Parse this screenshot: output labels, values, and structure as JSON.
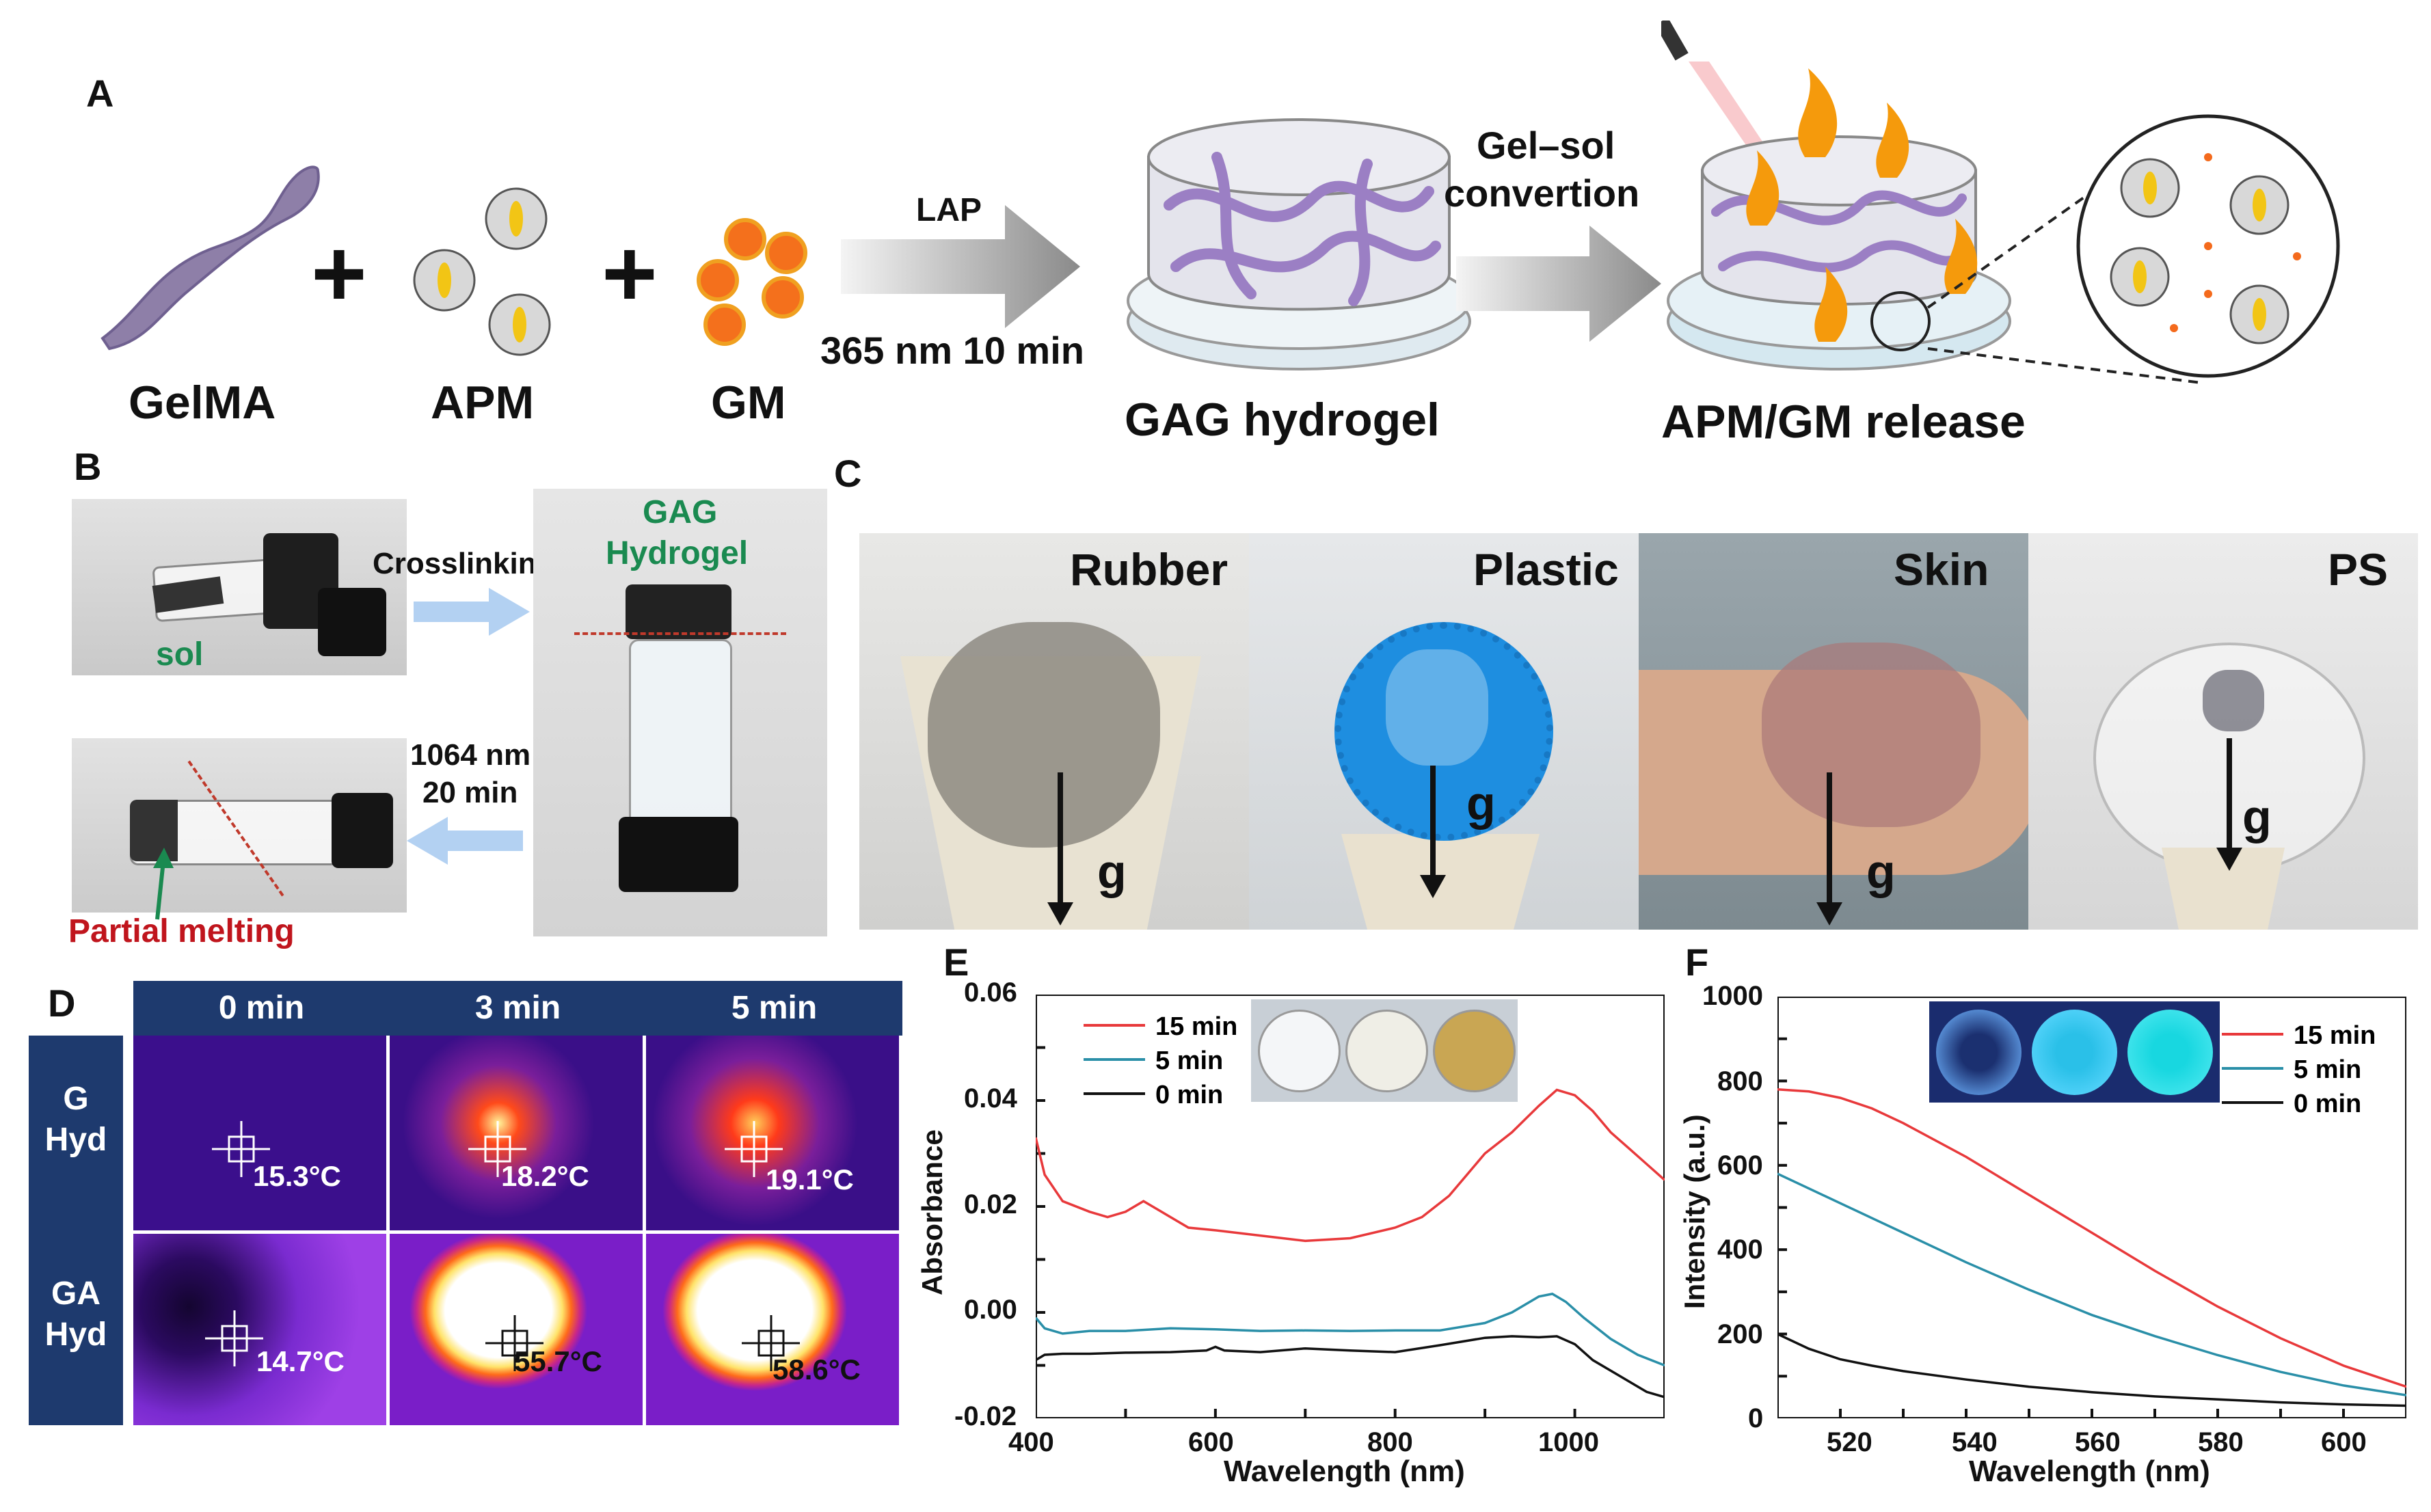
{
  "panels": {
    "a": "A",
    "b": "B",
    "c": "C",
    "d": "D",
    "e": "E",
    "f": "F"
  },
  "panel_a": {
    "gelma": "GelMA",
    "apm": "APM",
    "gm": "GM",
    "arrow1_top": "LAP",
    "arrow1_bottom": "365 nm 10 min",
    "gag_hydrogel": "GAG hydrogel",
    "arrow2_line1": "Gel–sol",
    "arrow2_line2": "convertion",
    "release": "APM/GM release"
  },
  "panel_b": {
    "sol": "sol",
    "crosslinking": "Crosslinking",
    "gag_line1": "GAG",
    "gag_line2": "Hydrogel",
    "laser_line1": "1064 nm",
    "laser_line2": "20 min",
    "partial_melting": "Partial melting"
  },
  "panel_c": {
    "rubber": "Rubber",
    "plastic": "Plastic",
    "skin": "Skin",
    "ps": "PS",
    "g": "g"
  },
  "panel_d": {
    "headers": [
      "0 min",
      "3 min",
      "5 min"
    ],
    "rows": [
      {
        "line1": "G",
        "line2": "Hyd",
        "temps": [
          "15.3°C",
          "18.2°C",
          "19.1°C"
        ]
      },
      {
        "line1": "GA",
        "line2": "Hyd",
        "temps": [
          "14.7°C",
          "55.7°C",
          "58.6°C"
        ]
      }
    ]
  },
  "chart_data": [
    {
      "type": "line",
      "panel": "E",
      "xlabel": "Wavelength (nm)",
      "ylabel": "Absorbance",
      "xlim": [
        400,
        1100
      ],
      "ylim": [
        -0.02,
        0.06
      ],
      "xticks": [
        400,
        600,
        800,
        1000
      ],
      "yticks": [
        "-0.02",
        "0.00",
        "0.02",
        "0.04",
        "0.06"
      ],
      "legend": "top-left",
      "series": [
        {
          "name": "15 min",
          "color": "#e8393b",
          "x": [
            400,
            410,
            430,
            460,
            480,
            500,
            520,
            540,
            570,
            600,
            650,
            700,
            750,
            800,
            830,
            860,
            880,
            900,
            930,
            960,
            980,
            1000,
            1020,
            1040,
            1060,
            1080,
            1100
          ],
          "y": [
            0.033,
            0.026,
            0.021,
            0.019,
            0.018,
            0.019,
            0.021,
            0.019,
            0.016,
            0.0155,
            0.0145,
            0.0135,
            0.014,
            0.016,
            0.018,
            0.022,
            0.026,
            0.03,
            0.034,
            0.039,
            0.042,
            0.041,
            0.038,
            0.034,
            0.031,
            0.028,
            0.025
          ]
        },
        {
          "name": "5 min",
          "color": "#2a8fa8",
          "x": [
            400,
            410,
            430,
            460,
            500,
            550,
            600,
            650,
            700,
            750,
            800,
            850,
            900,
            930,
            960,
            975,
            990,
            1010,
            1040,
            1070,
            1100
          ],
          "y": [
            -0.001,
            -0.003,
            -0.004,
            -0.0035,
            -0.0035,
            -0.003,
            -0.0032,
            -0.0035,
            -0.0034,
            -0.0035,
            -0.0034,
            -0.0034,
            -0.002,
            0.0,
            0.003,
            0.0035,
            0.002,
            -0.001,
            -0.005,
            -0.008,
            -0.01
          ]
        },
        {
          "name": "0 min",
          "color": "#111111",
          "x": [
            400,
            410,
            430,
            460,
            500,
            550,
            590,
            600,
            610,
            650,
            700,
            750,
            800,
            850,
            900,
            930,
            960,
            980,
            1000,
            1020,
            1050,
            1080,
            1100
          ],
          "y": [
            -0.009,
            -0.008,
            -0.0078,
            -0.0078,
            -0.0076,
            -0.0075,
            -0.0072,
            -0.0065,
            -0.0072,
            -0.0075,
            -0.0068,
            -0.0072,
            -0.0075,
            -0.0062,
            -0.0048,
            -0.0045,
            -0.0047,
            -0.0045,
            -0.006,
            -0.009,
            -0.012,
            -0.015,
            -0.016
          ]
        }
      ]
    },
    {
      "type": "line",
      "panel": "F",
      "xlabel": "Wavelength (nm)",
      "ylabel": "Intensity (a.u.)",
      "xlim": [
        510,
        610
      ],
      "ylim": [
        0,
        1000
      ],
      "xticks": [
        520,
        540,
        560,
        580,
        600
      ],
      "yticks": [
        0,
        200,
        400,
        600,
        800,
        1000
      ],
      "legend": "top-right",
      "series": [
        {
          "name": "15 min",
          "color": "#e8393b",
          "x": [
            510,
            515,
            520,
            525,
            530,
            540,
            550,
            560,
            570,
            580,
            590,
            600,
            610
          ],
          "y": [
            780,
            775,
            760,
            735,
            700,
            620,
            530,
            440,
            350,
            265,
            190,
            125,
            75
          ]
        },
        {
          "name": "5 min",
          "color": "#2a8fa8",
          "x": [
            510,
            515,
            520,
            525,
            530,
            540,
            550,
            560,
            570,
            580,
            590,
            600,
            610
          ],
          "y": [
            580,
            545,
            510,
            475,
            440,
            370,
            305,
            245,
            195,
            150,
            110,
            78,
            55
          ]
        },
        {
          "name": "0 min",
          "color": "#111111",
          "x": [
            510,
            515,
            520,
            525,
            530,
            540,
            550,
            560,
            570,
            580,
            590,
            600,
            610
          ],
          "y": [
            200,
            165,
            140,
            125,
            112,
            92,
            75,
            62,
            52,
            45,
            38,
            33,
            30
          ]
        }
      ]
    }
  ]
}
